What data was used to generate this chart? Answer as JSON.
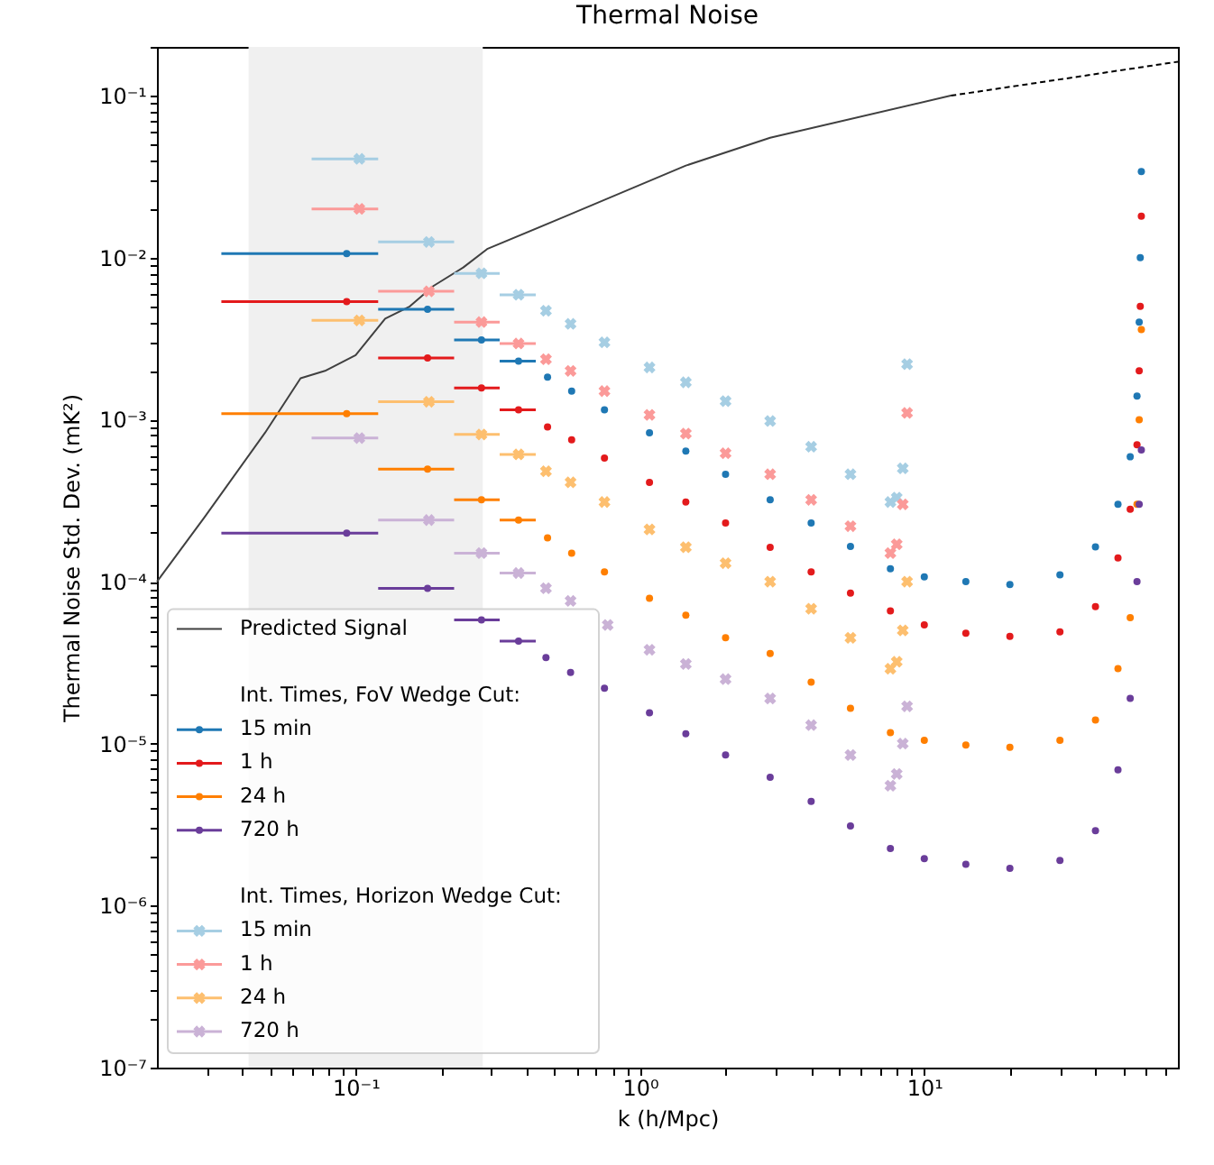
{
  "chart_data": {
    "type": "scatter",
    "title": "Thermal Noise",
    "xlabel": "k (h/Mpc)",
    "ylabel": "Thermal Noise Std. Dev. (mK²)",
    "annotations": [
      "Int. Times, FoV Wedge Cut:",
      "Int. Times, Horizon Wedge Cut:"
    ],
    "log": "xy",
    "grid": false,
    "legend": "bottom left",
    "xlim": [
      0.02,
      78
    ],
    "ylim": [
      1e-07,
      0.2
    ],
    "xticks": [
      {
        "value": 0.03,
        "label": null
      },
      {
        "value": 0.04,
        "label": null
      },
      {
        "value": 0.05,
        "label": null
      },
      {
        "value": 0.06,
        "label": null
      },
      {
        "value": 0.07,
        "label": null
      },
      {
        "value": 0.08,
        "label": null
      },
      {
        "value": 0.09,
        "label": null
      },
      {
        "value": 0.1,
        "label": "10⁻¹"
      },
      {
        "value": 0.2,
        "label": null
      },
      {
        "value": 0.3,
        "label": null
      },
      {
        "value": 0.4,
        "label": null
      },
      {
        "value": 0.5,
        "label": null
      },
      {
        "value": 0.6,
        "label": null
      },
      {
        "value": 0.7,
        "label": null
      },
      {
        "value": 0.8,
        "label": null
      },
      {
        "value": 0.9,
        "label": null
      },
      {
        "value": 1,
        "label": "10⁰"
      },
      {
        "value": 2,
        "label": null
      },
      {
        "value": 3,
        "label": null
      },
      {
        "value": 4,
        "label": null
      },
      {
        "value": 5,
        "label": null
      },
      {
        "value": 6,
        "label": null
      },
      {
        "value": 7,
        "label": null
      },
      {
        "value": 8,
        "label": null
      },
      {
        "value": 9,
        "label": null
      },
      {
        "value": 10,
        "label": "10¹"
      },
      {
        "value": 20,
        "label": null
      },
      {
        "value": 30,
        "label": null
      },
      {
        "value": 40,
        "label": null
      },
      {
        "value": 50,
        "label": null
      },
      {
        "value": 60,
        "label": null
      },
      {
        "value": 70,
        "label": null
      }
    ],
    "yticks": [
      {
        "value": 1e-07,
        "label": "10⁻⁷"
      },
      {
        "value": 2e-07,
        "label": null
      },
      {
        "value": 3e-07,
        "label": null
      },
      {
        "value": 4e-07,
        "label": null
      },
      {
        "value": 5e-07,
        "label": null
      },
      {
        "value": 6e-07,
        "label": null
      },
      {
        "value": 7e-07,
        "label": null
      },
      {
        "value": 8e-07,
        "label": null
      },
      {
        "value": 9e-07,
        "label": null
      },
      {
        "value": 1e-06,
        "label": "10⁻⁶"
      },
      {
        "value": 2e-06,
        "label": null
      },
      {
        "value": 3e-06,
        "label": null
      },
      {
        "value": 4e-06,
        "label": null
      },
      {
        "value": 5e-06,
        "label": null
      },
      {
        "value": 6e-06,
        "label": null
      },
      {
        "value": 7e-06,
        "label": null
      },
      {
        "value": 8e-06,
        "label": null
      },
      {
        "value": 9e-06,
        "label": null
      },
      {
        "value": 1e-05,
        "label": "10⁻⁵"
      },
      {
        "value": 2e-05,
        "label": null
      },
      {
        "value": 3e-05,
        "label": null
      },
      {
        "value": 4e-05,
        "label": null
      },
      {
        "value": 5e-05,
        "label": null
      },
      {
        "value": 6e-05,
        "label": null
      },
      {
        "value": 7e-05,
        "label": null
      },
      {
        "value": 8e-05,
        "label": null
      },
      {
        "value": 9e-05,
        "label": null
      },
      {
        "value": 0.0001,
        "label": "10⁻⁴"
      },
      {
        "value": 0.0002,
        "label": null
      },
      {
        "value": 0.0003,
        "label": null
      },
      {
        "value": 0.0004,
        "label": null
      },
      {
        "value": 0.0005,
        "label": null
      },
      {
        "value": 0.0006,
        "label": null
      },
      {
        "value": 0.0007,
        "label": null
      },
      {
        "value": 0.0008,
        "label": null
      },
      {
        "value": 0.0009,
        "label": null
      },
      {
        "value": 0.001,
        "label": "10⁻³"
      },
      {
        "value": 0.002,
        "label": null
      },
      {
        "value": 0.003,
        "label": null
      },
      {
        "value": 0.004,
        "label": null
      },
      {
        "value": 0.005,
        "label": null
      },
      {
        "value": 0.006,
        "label": null
      },
      {
        "value": 0.007,
        "label": null
      },
      {
        "value": 0.008,
        "label": null
      },
      {
        "value": 0.009,
        "label": null
      },
      {
        "value": 0.01,
        "label": "10⁻²"
      },
      {
        "value": 0.02,
        "label": null
      },
      {
        "value": 0.03,
        "label": null
      },
      {
        "value": 0.04,
        "label": null
      },
      {
        "value": 0.05,
        "label": null
      },
      {
        "value": 0.06,
        "label": null
      },
      {
        "value": 0.07,
        "label": null
      },
      {
        "value": 0.08,
        "label": null
      },
      {
        "value": 0.09,
        "label": null
      },
      {
        "value": 0.1,
        "label": "10⁻¹"
      },
      {
        "value": 0.2,
        "label": null
      }
    ],
    "bands": [
      {
        "axis": "x",
        "from": 0.042,
        "to": 0.28,
        "label": null,
        "color": "#f0f0f0"
      }
    ],
    "series": [
      {
        "name": "Predicted Signal",
        "type": "line",
        "color": "#404040",
        "line_style": "solid",
        "x": [
          0.02,
          0.0294,
          0.048,
          0.064,
          0.078,
          0.1,
          0.127,
          0.155,
          0.188,
          0.239,
          0.29,
          0.547,
          1.45,
          2.87,
          12.4
        ],
        "values": [
          0.0001,
          0.00025,
          0.00083,
          0.0018,
          0.002,
          0.0025,
          0.0042,
          0.005,
          0.0067,
          0.0087,
          0.0113,
          0.018,
          0.037,
          0.055,
          0.1
        ]
      },
      {
        "type": "line",
        "color": "#000000",
        "line_style": "dashed",
        "x": [
          12.4,
          32.8,
          78
        ],
        "values": [
          0.1,
          0.129,
          0.162
        ]
      },
      {
        "name": "15 min",
        "marker": "circle",
        "color": "#1f78b4",
        "x": [
          0.093,
          0.179,
          0.277,
          0.374,
          0.473,
          0.575,
          0.75,
          1.08,
          1.45,
          2.0,
          2.87,
          4.0,
          5.5,
          7.6,
          10,
          14,
          20,
          30,
          40,
          48,
          53,
          56,
          57,
          57.5,
          58
        ],
        "values": [
          0.0106,
          0.0048,
          0.0031,
          0.0023,
          0.00183,
          0.0015,
          0.00115,
          0.00083,
          0.00064,
          0.00046,
          0.00032,
          0.00023,
          0.000165,
          0.00012,
          0.000107,
          0.0001,
          9.6e-05,
          0.00011,
          0.000164,
          0.0003,
          0.00059,
          0.0014,
          0.004,
          0.01,
          0.034
        ],
        "xerrors": [
          [
            0.0337,
            0.12
          ],
          [
            0.12,
            0.222
          ],
          [
            0.222,
            0.321
          ],
          [
            0.321,
            0.43
          ],
          null,
          null,
          null,
          null,
          null,
          null,
          null,
          null,
          null,
          null,
          null,
          null,
          null,
          null,
          null,
          null,
          null,
          null,
          null,
          null,
          null
        ]
      },
      {
        "name": "1 h",
        "marker": "circle",
        "color": "#e31a1c",
        "x": [
          0.093,
          0.179,
          0.277,
          0.374,
          0.473,
          0.575,
          0.75,
          1.08,
          1.45,
          2.0,
          2.87,
          4.0,
          5.5,
          7.6,
          10,
          14,
          20,
          30,
          40,
          48,
          53,
          56,
          57,
          57.5,
          58
        ],
        "values": [
          0.00536,
          0.0024,
          0.00157,
          0.00115,
          0.0009,
          0.00075,
          0.00058,
          0.00041,
          0.00031,
          0.00023,
          0.000163,
          0.000115,
          8.5e-05,
          6.6e-05,
          5.4e-05,
          4.8e-05,
          4.6e-05,
          4.9e-05,
          7e-05,
          0.00014,
          0.00028,
          0.0007,
          0.002,
          0.005,
          0.018
        ],
        "xerrors": [
          [
            0.0337,
            0.12
          ],
          [
            0.12,
            0.222
          ],
          [
            0.222,
            0.321
          ],
          [
            0.321,
            0.43
          ],
          null,
          null,
          null,
          null,
          null,
          null,
          null,
          null,
          null,
          null,
          null,
          null,
          null,
          null,
          null,
          null,
          null,
          null,
          null,
          null,
          null
        ]
      },
      {
        "name": "24 h",
        "marker": "circle",
        "color": "#ff7f00",
        "x": [
          0.093,
          0.179,
          0.277,
          0.374,
          0.473,
          0.575,
          0.75,
          1.08,
          1.45,
          2.0,
          2.87,
          4.0,
          5.5,
          7.6,
          10,
          14,
          20,
          30,
          40,
          48,
          53,
          56,
          57,
          58
        ],
        "values": [
          0.00109,
          0.000495,
          0.00032,
          0.00024,
          0.000186,
          0.00015,
          0.000115,
          7.9e-05,
          6.2e-05,
          4.5e-05,
          3.6e-05,
          2.4e-05,
          1.65e-05,
          1.17e-05,
          1.05e-05,
          9.8e-06,
          9.5e-06,
          1.05e-05,
          1.4e-05,
          2.9e-05,
          6e-05,
          0.0003,
          0.001,
          0.0036
        ],
        "xerrors": [
          [
            0.0337,
            0.12
          ],
          [
            0.12,
            0.222
          ],
          [
            0.222,
            0.321
          ],
          [
            0.321,
            0.43
          ],
          null,
          null,
          null,
          null,
          null,
          null,
          null,
          null,
          null,
          null,
          null,
          null,
          null,
          null,
          null,
          null,
          null,
          null,
          null,
          null
        ]
      },
      {
        "name": "720 h",
        "marker": "circle",
        "color": "#6a3d9a",
        "x": [
          0.093,
          0.179,
          0.277,
          0.374,
          0.467,
          0.57,
          0.75,
          1.08,
          1.45,
          2.0,
          2.87,
          4.0,
          5.5,
          7.6,
          10,
          14,
          20,
          30,
          40,
          48,
          53,
          56,
          57,
          58
        ],
        "values": [
          0.000199,
          9.1e-05,
          5.8e-05,
          4.3e-05,
          3.4e-05,
          2.75e-05,
          2.2e-05,
          1.55e-05,
          1.15e-05,
          8.5e-06,
          6.2e-06,
          4.4e-06,
          3.1e-06,
          2.25e-06,
          1.95e-06,
          1.8e-06,
          1.7e-06,
          1.9e-06,
          2.9e-06,
          6.9e-06,
          1.9e-05,
          0.0001,
          0.0003,
          0.00065
        ],
        "xerrors": [
          [
            0.0337,
            0.12
          ],
          [
            0.12,
            0.222
          ],
          [
            0.222,
            0.321
          ],
          [
            0.321,
            0.43
          ],
          null,
          null,
          null,
          null,
          null,
          null,
          null,
          null,
          null,
          null,
          null,
          null,
          null,
          null,
          null,
          null,
          null,
          null,
          null,
          null
        ]
      },
      {
        "name": "15 min",
        "marker": "cross",
        "color": "#a6cee3",
        "x": [
          0.103,
          0.181,
          0.277,
          0.374,
          0.467,
          0.57,
          0.75,
          1.08,
          1.45,
          2.0,
          2.87,
          4.0,
          5.5,
          7.6,
          8.0,
          8.4,
          8.7
        ],
        "values": [
          0.0407,
          0.0125,
          0.008,
          0.0059,
          0.0047,
          0.0039,
          0.003,
          0.0021,
          0.0017,
          0.0013,
          0.00098,
          0.00068,
          0.00046,
          0.00031,
          0.00033,
          0.0005,
          0.0022
        ],
        "xerrors": [
          [
            0.07,
            0.12
          ],
          [
            0.12,
            0.222
          ],
          [
            0.222,
            0.321
          ],
          [
            0.321,
            0.43
          ],
          null,
          null,
          null,
          null,
          null,
          null,
          null,
          null,
          null,
          null,
          null,
          null,
          null
        ]
      },
      {
        "name": "1 h",
        "marker": "cross",
        "color": "#fb9a99",
        "x": [
          0.103,
          0.181,
          0.277,
          0.374,
          0.467,
          0.57,
          0.75,
          1.08,
          1.45,
          2.0,
          2.87,
          4.0,
          5.5,
          7.6,
          8.0,
          8.4,
          8.7
        ],
        "values": [
          0.02,
          0.0062,
          0.004,
          0.00295,
          0.00236,
          0.002,
          0.0015,
          0.00107,
          0.00082,
          0.00062,
          0.00046,
          0.00032,
          0.00022,
          0.00015,
          0.00017,
          0.0003,
          0.0011
        ],
        "xerrors": [
          [
            0.07,
            0.12
          ],
          [
            0.12,
            0.222
          ],
          [
            0.222,
            0.321
          ],
          [
            0.321,
            0.43
          ],
          null,
          null,
          null,
          null,
          null,
          null,
          null,
          null,
          null,
          null,
          null,
          null,
          null
        ]
      },
      {
        "name": "24 h",
        "marker": "cross",
        "color": "#fdbf6f",
        "x": [
          0.103,
          0.181,
          0.277,
          0.374,
          0.467,
          0.57,
          0.75,
          1.08,
          1.45,
          2.0,
          2.87,
          4.0,
          5.5,
          7.6,
          8.0,
          8.4,
          8.7
        ],
        "values": [
          0.0041,
          0.00129,
          0.00081,
          0.00061,
          0.00048,
          0.00041,
          0.00031,
          0.00021,
          0.000163,
          0.00013,
          0.0001,
          6.8e-05,
          4.5e-05,
          2.9e-05,
          3.2e-05,
          5e-05,
          0.0001
        ],
        "xerrors": [
          [
            0.07,
            0.12
          ],
          [
            0.12,
            0.222
          ],
          [
            0.222,
            0.321
          ],
          [
            0.321,
            0.43
          ],
          null,
          null,
          null,
          null,
          null,
          null,
          null,
          null,
          null,
          null,
          null,
          null,
          null
        ]
      },
      {
        "name": "720 h",
        "marker": "cross",
        "color": "#cab2d6",
        "x": [
          0.103,
          0.181,
          0.277,
          0.374,
          0.467,
          0.57,
          0.77,
          1.08,
          1.45,
          2.0,
          2.87,
          4.0,
          5.5,
          7.6,
          8.0,
          8.4,
          8.7
        ],
        "values": [
          0.00077,
          0.00024,
          0.00015,
          0.000113,
          9.1e-05,
          7.6e-05,
          5.4e-05,
          3.8e-05,
          3.1e-05,
          2.5e-05,
          1.9e-05,
          1.3e-05,
          8.5e-06,
          5.5e-06,
          6.5e-06,
          1e-05,
          1.7e-05
        ],
        "xerrors": [
          [
            0.07,
            0.12
          ],
          [
            0.12,
            0.222
          ],
          [
            0.222,
            0.321
          ],
          [
            0.321,
            0.43
          ],
          null,
          null,
          null,
          null,
          null,
          null,
          null,
          null,
          null,
          null,
          null,
          null,
          null
        ]
      }
    ]
  }
}
